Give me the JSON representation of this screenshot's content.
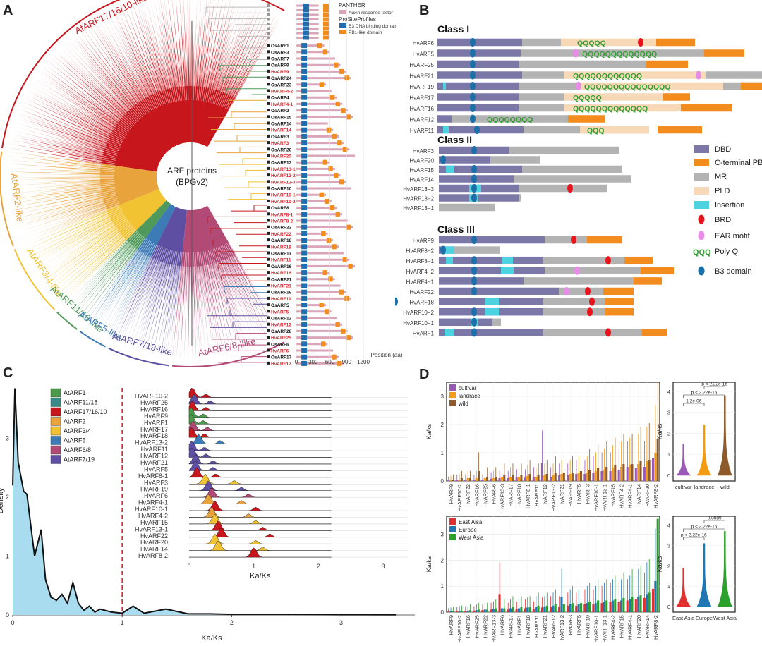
{
  "panels": {
    "a": "A",
    "b": "B",
    "c": "C",
    "d": "D"
  },
  "panel_a": {
    "center_title": "ARF proteins",
    "center_sub": "(BPGv2)",
    "clades": [
      {
        "name": "AtARF17/16/10-like",
        "color": "#c8161d"
      },
      {
        "name": "AtARF2-like",
        "color": "#e8a33d"
      },
      {
        "name": "AtARF3/4-like",
        "color": "#f1c232"
      },
      {
        "name": "AtARF11/18-like",
        "color": "#4f9a5a"
      },
      {
        "name": "AtARF5-like",
        "color": "#3d7bb6"
      },
      {
        "name": "AtARF7/19-like",
        "color": "#5f4fa3"
      },
      {
        "name": "AtARF6/8-llike",
        "color": "#b24a76"
      }
    ],
    "legend": {
      "panther": "PANTHER",
      "auxin": "Auxin response factor",
      "prosite": "ProSiteProfiles",
      "b3": "B3 DNA binding domain",
      "pb1": "PB1-like domain"
    },
    "genes": [
      "OsARF1",
      "OsARF3",
      "OsARF7",
      "OsARF9",
      "HvARF9",
      "OsARF24",
      "OsARF23",
      "HvARF4-2",
      "OsARF4",
      "HvARF4-1",
      "OsARF2",
      "OsARF15",
      "OsARF14",
      "HvARF14",
      "OsARF3",
      "HvARF3",
      "OsARF20",
      "HvARF20",
      "OsARF13",
      "HvARF13-1",
      "HvARF13-2",
      "HvARF13-3",
      "OsARF10",
      "HvARF10-1",
      "HvARF10-2",
      "OsARF8",
      "HvARF8-1",
      "HvARF8-2",
      "OsARF22",
      "HvARF22",
      "OsARF18",
      "HvARF18",
      "OsARF11",
      "HvARF11",
      "OsARF16",
      "HvARF16",
      "OsARF21",
      "HvARF21",
      "OsARF19",
      "HvARF19",
      "OsARF5",
      "HvARF5",
      "OsARF12",
      "HvARF12",
      "OsARF28",
      "HvARF25",
      "OsARF6",
      "HvARF6",
      "OsARF17",
      "HvARF17"
    ],
    "axis_ticks": [
      "0",
      "300",
      "600",
      "900",
      "1200"
    ],
    "axis_label": "Position (aa)"
  },
  "panel_b": {
    "legend": [
      {
        "label": "DBD",
        "color": "#7b78a8"
      },
      {
        "label": "C-terminal PB1",
        "color": "#f28c1e"
      },
      {
        "label": "MR",
        "color": "#b3b3b3"
      },
      {
        "label": "PLD",
        "color": "#f7d9b8"
      },
      {
        "label": "Insertion",
        "color": "#4dd3e0"
      },
      {
        "label": "BRD",
        "color": "#e8141d"
      },
      {
        "label": "EAR motif",
        "color": "#e98ce8"
      },
      {
        "label": "Poly Q",
        "color": "#2e9e2e"
      },
      {
        "label": "B3 domain",
        "color": "#1d6fa8"
      }
    ],
    "polyq_glyph": "QQQ",
    "classes": [
      {
        "title": "Class I",
        "rows": [
          {
            "name": "HvARF6",
            "q": "QQQQQ"
          },
          {
            "name": "HvARF5",
            "q": "QQQQQQQQQQQQQ"
          },
          {
            "name": "HvARF25",
            "q": ""
          },
          {
            "name": "HvARF21",
            "q": "QQQQQQQQQQQQ"
          },
          {
            "name": "HvARF19",
            "q": "QQQQQQQQQQQQQQQ"
          },
          {
            "name": "HvARF17",
            "q": "QQQQQ"
          },
          {
            "name": "HvARF16",
            "q": "QQQQQQQQQQQQQ"
          },
          {
            "name": "HvARF12",
            "q": "QQQQQQQQ"
          },
          {
            "name": "HvARF11",
            "q": "QQQ"
          }
        ]
      },
      {
        "title": "Class II",
        "rows": [
          {
            "name": "HvARF3"
          },
          {
            "name": "HvARF20"
          },
          {
            "name": "HvARF15"
          },
          {
            "name": "HvARF14"
          },
          {
            "name": "HvARF13−3"
          },
          {
            "name": "HvARF13−2"
          },
          {
            "name": "HvARF13−1"
          }
        ]
      },
      {
        "title": "Class III",
        "rows": [
          {
            "name": "HvARF9"
          },
          {
            "name": "HvARF8−2"
          },
          {
            "name": "HvARF8−1"
          },
          {
            "name": "HvARF4−2"
          },
          {
            "name": "HvARF4−1"
          },
          {
            "name": "HvARF22"
          },
          {
            "name": "HvARF18"
          },
          {
            "name": "HvARF10−2"
          },
          {
            "name": "HvARF10−1"
          },
          {
            "name": "HvARF1"
          }
        ]
      }
    ]
  },
  "chart_data": [
    {
      "type": "area",
      "panel": "C-density",
      "ylabel": "Density",
      "xlabel": "Ka/Ks",
      "x_ticks": [
        "0",
        "1",
        "2",
        "3"
      ],
      "y_ticks": [
        "0",
        "1",
        "2",
        "3"
      ],
      "xlim": [
        0,
        3.6
      ],
      "ylim": [
        0,
        4
      ],
      "threshold_line": 1,
      "x": [
        0,
        0.02,
        0.05,
        0.1,
        0.13,
        0.2,
        0.26,
        0.3,
        0.35,
        0.4,
        0.45,
        0.5,
        0.55,
        0.6,
        0.65,
        0.7,
        0.75,
        0.8,
        0.9,
        1.0,
        1.1,
        1.2,
        1.4,
        1.6,
        1.8,
        2.0,
        2.5,
        3.0,
        3.5
      ],
      "y": [
        2.2,
        3.85,
        2.6,
        2.1,
        2.05,
        1.0,
        1.45,
        0.6,
        0.3,
        0.25,
        0.35,
        0.2,
        0.55,
        0.2,
        0.08,
        0.15,
        0.05,
        0.1,
        0.05,
        0.03,
        0.15,
        0.03,
        0.1,
        0.02,
        0.02,
        0.01,
        0.01,
        0.005,
        0.003
      ]
    },
    {
      "type": "ridgeline",
      "panel": "C-ridges",
      "xlabel": "Ka/Ks",
      "x_ticks": [
        "0",
        "1",
        "2",
        "3"
      ],
      "legend": [
        {
          "name": "AtARF1",
          "color": "#4c9a4c"
        },
        {
          "name": "AtARF11/18",
          "color": "#3a8a86"
        },
        {
          "name": "AtARF17/16/10",
          "color": "#c8161d"
        },
        {
          "name": "AtARF2",
          "color": "#e8a33d"
        },
        {
          "name": "AtARF3/4",
          "color": "#f1c232"
        },
        {
          "name": "AtARF5",
          "color": "#3d7bb6"
        },
        {
          "name": "AtARF6/8",
          "color": "#b24a76"
        },
        {
          "name": "AtARF7/19",
          "color": "#5f4fa3"
        }
      ],
      "genes": [
        {
          "name": "HvARF10-2",
          "peak": 0.05,
          "color": "#c8161d"
        },
        {
          "name": "HvARF25",
          "peak": 0.08,
          "color": "#5f4fa3"
        },
        {
          "name": "HvARF16",
          "peak": 0.05,
          "color": "#c8161d"
        },
        {
          "name": "HvARF9",
          "peak": 0.03,
          "color": "#4c9a4c"
        },
        {
          "name": "HvARF1",
          "peak": 0.03,
          "color": "#4c9a4c"
        },
        {
          "name": "HvARF17",
          "peak": 0.06,
          "color": "#b24a76"
        },
        {
          "name": "HvARF18",
          "peak": 0.04,
          "color": "#c8161d"
        },
        {
          "name": "HvARF13-2",
          "peak": 0.15,
          "color": "#3d7bb6"
        },
        {
          "name": "HvARF11",
          "peak": 0.04,
          "color": "#5f4fa3"
        },
        {
          "name": "HvARF12",
          "peak": 0.05,
          "color": "#5f4fa3"
        },
        {
          "name": "HvARF21",
          "peak": 0.1,
          "color": "#5f4fa3"
        },
        {
          "name": "HvARF5",
          "peak": 0.1,
          "color": "#5f4fa3"
        },
        {
          "name": "HvARF8-1",
          "peak": 0.12,
          "color": "#c8161d"
        },
        {
          "name": "HvARF3",
          "peak": 0.25,
          "color": "#f1c232"
        },
        {
          "name": "HvARF19",
          "peak": 0.3,
          "color": "#5f4fa3"
        },
        {
          "name": "HvARF6",
          "peak": 0.35,
          "color": "#b24a76"
        },
        {
          "name": "HvARF4-1",
          "peak": 0.3,
          "color": "#e8a33d"
        },
        {
          "name": "HvARF10-1",
          "peak": 0.4,
          "color": "#c8161d"
        },
        {
          "name": "HvARF4-2",
          "peak": 0.35,
          "color": "#e8a33d"
        },
        {
          "name": "HvARF15",
          "peak": 0.4,
          "color": "#f1c232"
        },
        {
          "name": "HvARF13-1",
          "peak": 0.45,
          "color": "#c8161d"
        },
        {
          "name": "HvARF22",
          "peak": 0.5,
          "color": "#c8161d"
        },
        {
          "name": "HvARF20",
          "peak": 0.4,
          "color": "#f1c232"
        },
        {
          "name": "HvARF14",
          "peak": 0.45,
          "color": "#f1c232"
        },
        {
          "name": "HvARF8-2",
          "peak": 1.0,
          "color": "#c8161d"
        }
      ]
    },
    {
      "type": "bar",
      "panel": "D-top",
      "ylabel": "Ka/ks",
      "y_ticks": [
        "0",
        "1",
        "2",
        "3"
      ],
      "ylim": [
        0,
        3.5
      ],
      "categories": [
        "HvARF9",
        "HvARF10-2",
        "HvARF22",
        "HvARF16",
        "HvARF25",
        "HvARF6",
        "HvARF13-3",
        "HvARF17",
        "HvARF18",
        "HvARF8-1",
        "HvARF11",
        "HvARF12",
        "HvARF13-2",
        "HvARF21",
        "HvARF19",
        "HvARF5",
        "HvARF3",
        "HvARF10-1",
        "HvARF13-1",
        "HvARF15",
        "HvARF4-2",
        "HvARF4-1",
        "HvARF14",
        "HvARF20",
        "HvARF8-2"
      ],
      "series": [
        {
          "name": "cultivar",
          "color": "#9b59b6",
          "values": [
            0.02,
            0.05,
            0.05,
            0.05,
            0.05,
            0.08,
            0.1,
            0.1,
            0.12,
            0.12,
            0.15,
            0.65,
            0.15,
            0.2,
            0.2,
            0.25,
            0.25,
            0.3,
            0.35,
            0.35,
            0.4,
            0.5,
            0.45,
            0.5,
            0.8
          ]
        },
        {
          "name": "landrace",
          "color": "#f39c12",
          "values": [
            0.03,
            0.05,
            0.1,
            0.1,
            0.1,
            0.1,
            0.15,
            0.15,
            0.15,
            0.18,
            0.15,
            0.2,
            0.2,
            0.25,
            0.25,
            0.3,
            0.3,
            0.35,
            0.4,
            0.45,
            0.5,
            0.55,
            0.6,
            0.7,
            1.0
          ]
        },
        {
          "name": "wild",
          "color": "#8e5a2b",
          "values": [
            0.05,
            0.1,
            0.1,
            0.35,
            0.15,
            0.15,
            0.2,
            0.2,
            0.2,
            0.25,
            0.2,
            0.25,
            0.3,
            0.3,
            0.3,
            0.35,
            0.4,
            0.45,
            0.5,
            0.55,
            0.6,
            0.6,
            0.7,
            0.75,
            1.5
          ]
        }
      ]
    },
    {
      "type": "bar",
      "panel": "D-bottom",
      "ylabel": "Ka/ks",
      "y_ticks": [
        "0",
        "1",
        "2",
        "3"
      ],
      "ylim": [
        0,
        3.7
      ],
      "categories": [
        "HvARF9",
        "HvARF10-2",
        "HvARF16",
        "HvARF25",
        "HvARF22",
        "HvARF13-3",
        "HvARF6",
        "HvARF17",
        "HvARF1",
        "HvARF18",
        "HvARF11",
        "HvARF21",
        "HvARF12",
        "HvARF13-2",
        "HvARF3",
        "HvARF5",
        "HvARF19",
        "HvARF10-1",
        "HvARF13-1",
        "HvARF4-2",
        "HvARF15",
        "HvARF4-1",
        "HvARF20",
        "HvARF14",
        "HvARF8-2"
      ],
      "series": [
        {
          "name": "East Aisa",
          "color": "#e03131",
          "values": [
            0.02,
            0.04,
            0.05,
            0.05,
            0.08,
            0.1,
            0.7,
            0.1,
            0.12,
            0.15,
            0.12,
            0.18,
            0.2,
            0.2,
            0.25,
            0.25,
            0.3,
            0.3,
            0.35,
            0.4,
            0.4,
            0.45,
            0.5,
            0.55,
            0.9
          ]
        },
        {
          "name": "Europe",
          "color": "#1f78b4",
          "values": [
            0.03,
            0.05,
            0.05,
            0.08,
            0.1,
            0.12,
            0.15,
            0.15,
            0.15,
            0.18,
            0.2,
            0.2,
            0.25,
            0.6,
            0.3,
            0.3,
            0.35,
            0.35,
            0.4,
            0.45,
            0.45,
            0.5,
            0.6,
            0.7,
            1.2
          ]
        },
        {
          "name": "West Asia",
          "color": "#2ca02c",
          "values": [
            0.04,
            0.06,
            0.08,
            0.1,
            0.1,
            0.15,
            0.15,
            0.2,
            0.2,
            0.2,
            0.25,
            0.25,
            0.3,
            0.3,
            0.35,
            0.35,
            0.4,
            0.45,
            0.45,
            0.5,
            0.55,
            0.6,
            0.65,
            0.75,
            3.6
          ]
        }
      ]
    },
    {
      "type": "violin",
      "panel": "D-top-right",
      "ylabel": "Ka/ks",
      "categories": [
        "cultivar",
        "landrace",
        "wild"
      ],
      "colors": [
        "#9b59b6",
        "#f39c12",
        "#8e5a2b"
      ],
      "max": [
        1.5,
        2.4,
        3.8
      ],
      "y_ticks": [
        "0",
        "1",
        "2",
        "3",
        "4"
      ],
      "pvalues": [
        "1.2e-06",
        "p < 2.22e-16",
        "p < 2.22e-16"
      ]
    },
    {
      "type": "violin",
      "panel": "D-bottom-right",
      "ylabel": "Ka/ks",
      "categories": [
        "East Asia",
        "Europe",
        "West Asia"
      ],
      "colors": [
        "#e03131",
        "#1f78b4",
        "#2ca02c"
      ],
      "max": [
        1.9,
        3.1,
        3.7
      ],
      "y_ticks": [
        "0",
        "1",
        "2",
        "3",
        "4"
      ],
      "pvalues": [
        "p < 2.22e-16",
        "p < 2.22e-16",
        "0.0089"
      ]
    }
  ]
}
